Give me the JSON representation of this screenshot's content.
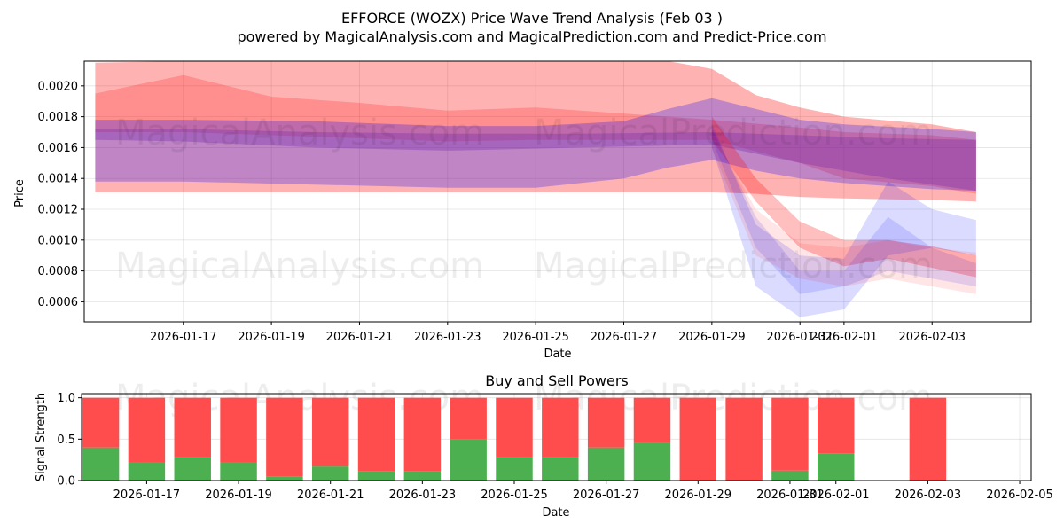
{
  "chart_data": [
    {
      "type": "area",
      "title": "EFFORCE (WOZX) Price Wave Trend Analysis (Feb 03 )",
      "subtitle": "powered by MagicalAnalysis.com and MagicalPrediction.com and Predict-Price.com",
      "xlabel": "Date",
      "ylabel": "Price",
      "xlim": [
        "2026-01-14T18:00",
        "2026-02-05T06:00"
      ],
      "ylim": [
        0.00047,
        0.00216
      ],
      "yticks": [
        0.0006,
        0.0008,
        0.001,
        0.0012,
        0.0014,
        0.0016,
        0.0018,
        0.002
      ],
      "ytick_labels": [
        "0.0006",
        "0.0008",
        "0.0010",
        "0.0012",
        "0.0014",
        "0.0016",
        "0.0018",
        "0.0020"
      ],
      "xticks": [
        "2026-01-17",
        "2026-01-19",
        "2026-01-21",
        "2026-01-23",
        "2026-01-25",
        "2026-01-27",
        "2026-01-29",
        "2026-01-31",
        "2026-02-01",
        "2026-02-03"
      ],
      "xtick_labels": [
        "2026-01-17",
        "2026-01-19",
        "2026-01-21",
        "2026-01-23",
        "2026-01-25",
        "2026-01-27",
        "2026-01-29",
        "2026-01-31",
        "2026-02-01",
        "2026-02-03"
      ],
      "grid": true,
      "watermarks": [
        "MagicalAnalysis.com",
        "MagicalPrediction.com",
        "MagicalAnalysis.com",
        "MagicalPrediction.com"
      ],
      "bands": [
        {
          "name": "red-wide",
          "color": "#ff0000",
          "opacity": 0.3,
          "x": [
            "2026-01-15",
            "2026-01-17",
            "2026-01-20",
            "2026-01-23",
            "2026-01-26",
            "2026-01-28",
            "2026-01-29",
            "2026-01-30",
            "2026-01-31",
            "2026-02-01",
            "2026-02-03",
            "2026-02-04"
          ],
          "upper": [
            0.00215,
            0.00216,
            0.00216,
            0.00216,
            0.00216,
            0.00216,
            0.00211,
            0.00194,
            0.00186,
            0.0018,
            0.00175,
            0.0017
          ],
          "lower": [
            0.00131,
            0.00131,
            0.00131,
            0.00131,
            0.00131,
            0.00131,
            0.00131,
            0.0013,
            0.00128,
            0.00127,
            0.00126,
            0.00125
          ]
        },
        {
          "name": "red-upper",
          "color": "#ff0000",
          "opacity": 0.2,
          "x": [
            "2026-01-15",
            "2026-01-17",
            "2026-01-19",
            "2026-01-21",
            "2026-01-23",
            "2026-01-25",
            "2026-01-27",
            "2026-01-29",
            "2026-01-31",
            "2026-02-01",
            "2026-02-03",
            "2026-02-04"
          ],
          "upper": [
            0.00195,
            0.00207,
            0.00193,
            0.00189,
            0.00184,
            0.00186,
            0.00182,
            0.00178,
            0.00173,
            0.0017,
            0.00168,
            0.00165
          ],
          "lower": [
            0.0017,
            0.0017,
            0.00168,
            0.00166,
            0.00164,
            0.00165,
            0.00165,
            0.00165,
            0.0015,
            0.0014,
            0.00135,
            0.0013
          ]
        },
        {
          "name": "blue-wide",
          "color": "#0000ff",
          "opacity": 0.25,
          "x": [
            "2026-01-15",
            "2026-01-17",
            "2026-01-20",
            "2026-01-23",
            "2026-01-25",
            "2026-01-27",
            "2026-01-28",
            "2026-01-29",
            "2026-01-30",
            "2026-01-31",
            "2026-02-01",
            "2026-02-03",
            "2026-02-04"
          ],
          "upper": [
            0.00178,
            0.00178,
            0.00177,
            0.00174,
            0.00174,
            0.00177,
            0.00185,
            0.00192,
            0.00185,
            0.00178,
            0.00175,
            0.00172,
            0.0017
          ],
          "lower": [
            0.00138,
            0.00138,
            0.00136,
            0.00134,
            0.00134,
            0.0014,
            0.00147,
            0.00152,
            0.00145,
            0.0014,
            0.00137,
            0.00133,
            0.00132
          ]
        },
        {
          "name": "purple-core",
          "color": "#7a2fb0",
          "opacity": 0.35,
          "x": [
            "2026-01-15",
            "2026-01-17",
            "2026-01-20",
            "2026-01-23",
            "2026-01-26",
            "2026-01-29",
            "2026-01-31",
            "2026-02-02",
            "2026-02-04"
          ],
          "upper": [
            0.00172,
            0.00172,
            0.0017,
            0.00169,
            0.00169,
            0.0017,
            0.00168,
            0.00166,
            0.00165
          ],
          "lower": [
            0.00165,
            0.00164,
            0.0016,
            0.00158,
            0.0016,
            0.00162,
            0.0015,
            0.0014,
            0.00132
          ]
        },
        {
          "name": "red-forecast",
          "color": "#ff0000",
          "opacity": 0.25,
          "x": [
            "2026-01-29",
            "2026-01-30",
            "2026-01-31",
            "2026-02-01",
            "2026-02-02",
            "2026-02-03",
            "2026-02-04"
          ],
          "upper": [
            0.0018,
            0.0014,
            0.00112,
            0.001,
            0.001,
            0.00096,
            0.0009
          ],
          "lower": [
            0.00165,
            0.00125,
            0.00095,
            0.00083,
            0.00088,
            0.00082,
            0.00076
          ]
        },
        {
          "name": "blue-forecast",
          "color": "#0000ff",
          "opacity": 0.14,
          "x": [
            "2026-01-29",
            "2026-01-30",
            "2026-01-31",
            "2026-02-01",
            "2026-02-02",
            "2026-02-03",
            "2026-02-04"
          ],
          "upper": [
            0.00175,
            0.0011,
            0.0009,
            0.00088,
            0.00138,
            0.0012,
            0.00113
          ],
          "lower": [
            0.0016,
            0.0007,
            0.0005,
            0.00055,
            0.0009,
            0.00095,
            0.0009
          ]
        },
        {
          "name": "blue-forecast-2",
          "color": "#0000ff",
          "opacity": 0.12,
          "x": [
            "2026-01-29",
            "2026-01-30",
            "2026-01-31",
            "2026-02-01",
            "2026-02-02",
            "2026-02-03",
            "2026-02-04"
          ],
          "upper": [
            0.00172,
            0.00115,
            0.0008,
            0.0008,
            0.00115,
            0.00095,
            0.00085
          ],
          "lower": [
            0.00165,
            0.00095,
            0.00065,
            0.0007,
            0.0008,
            0.00075,
            0.0007
          ]
        },
        {
          "name": "pink-forecast",
          "color": "#ff0000",
          "opacity": 0.1,
          "x": [
            "2026-01-29",
            "2026-01-30",
            "2026-01-31",
            "2026-02-01",
            "2026-02-02",
            "2026-02-03",
            "2026-02-04"
          ],
          "upper": [
            0.0017,
            0.0012,
            0.00098,
            0.00095,
            0.001,
            0.00095,
            0.00092
          ],
          "lower": [
            0.0016,
            0.0009,
            0.00075,
            0.0007,
            0.00075,
            0.0007,
            0.00065
          ]
        }
      ]
    },
    {
      "type": "bar",
      "title": "Buy and Sell Powers",
      "xlabel": "Date",
      "ylabel": "Signal Strength",
      "xlim": [
        "2026-01-15T14:00",
        "2026-02-05T06:00"
      ],
      "ylim": [
        0,
        1.05
      ],
      "yticks": [
        0.0,
        0.5,
        1.0
      ],
      "ytick_labels": [
        "0.0",
        "0.5",
        "1.0"
      ],
      "xticks": [
        "2026-01-17",
        "2026-01-19",
        "2026-01-21",
        "2026-01-23",
        "2026-01-25",
        "2026-01-27",
        "2026-01-29",
        "2026-01-31",
        "2026-02-01",
        "2026-02-03",
        "2026-02-05"
      ],
      "xtick_labels": [
        "2026-01-17",
        "2026-01-19",
        "2026-01-21",
        "2026-01-23",
        "2026-01-25",
        "2026-01-27",
        "2026-01-29",
        "2026-01-31",
        "2026-02-01",
        "2026-02-03",
        "2026-02-05"
      ],
      "grid": true,
      "categories": [
        "2026-01-16",
        "2026-01-17",
        "2026-01-18",
        "2026-01-19",
        "2026-01-20",
        "2026-01-21",
        "2026-01-22",
        "2026-01-23",
        "2026-01-24",
        "2026-01-25",
        "2026-01-26",
        "2026-01-27",
        "2026-01-28",
        "2026-01-29",
        "2026-01-30",
        "2026-01-31",
        "2026-02-01",
        "2026-02-03"
      ],
      "series": [
        {
          "name": "Buy",
          "color": "#4caf50",
          "values": [
            0.4,
            0.22,
            0.28,
            0.22,
            0.05,
            0.17,
            0.11,
            0.11,
            0.5,
            0.28,
            0.28,
            0.4,
            0.46,
            0.0,
            0.0,
            0.12,
            0.33,
            0.0
          ]
        },
        {
          "name": "Sell",
          "color": "#ff4d4d",
          "values": [
            0.6,
            0.78,
            0.72,
            0.78,
            0.95,
            0.83,
            0.89,
            0.89,
            0.5,
            0.72,
            0.72,
            0.6,
            0.54,
            1.0,
            1.0,
            0.88,
            0.67,
            1.0
          ]
        }
      ]
    }
  ]
}
